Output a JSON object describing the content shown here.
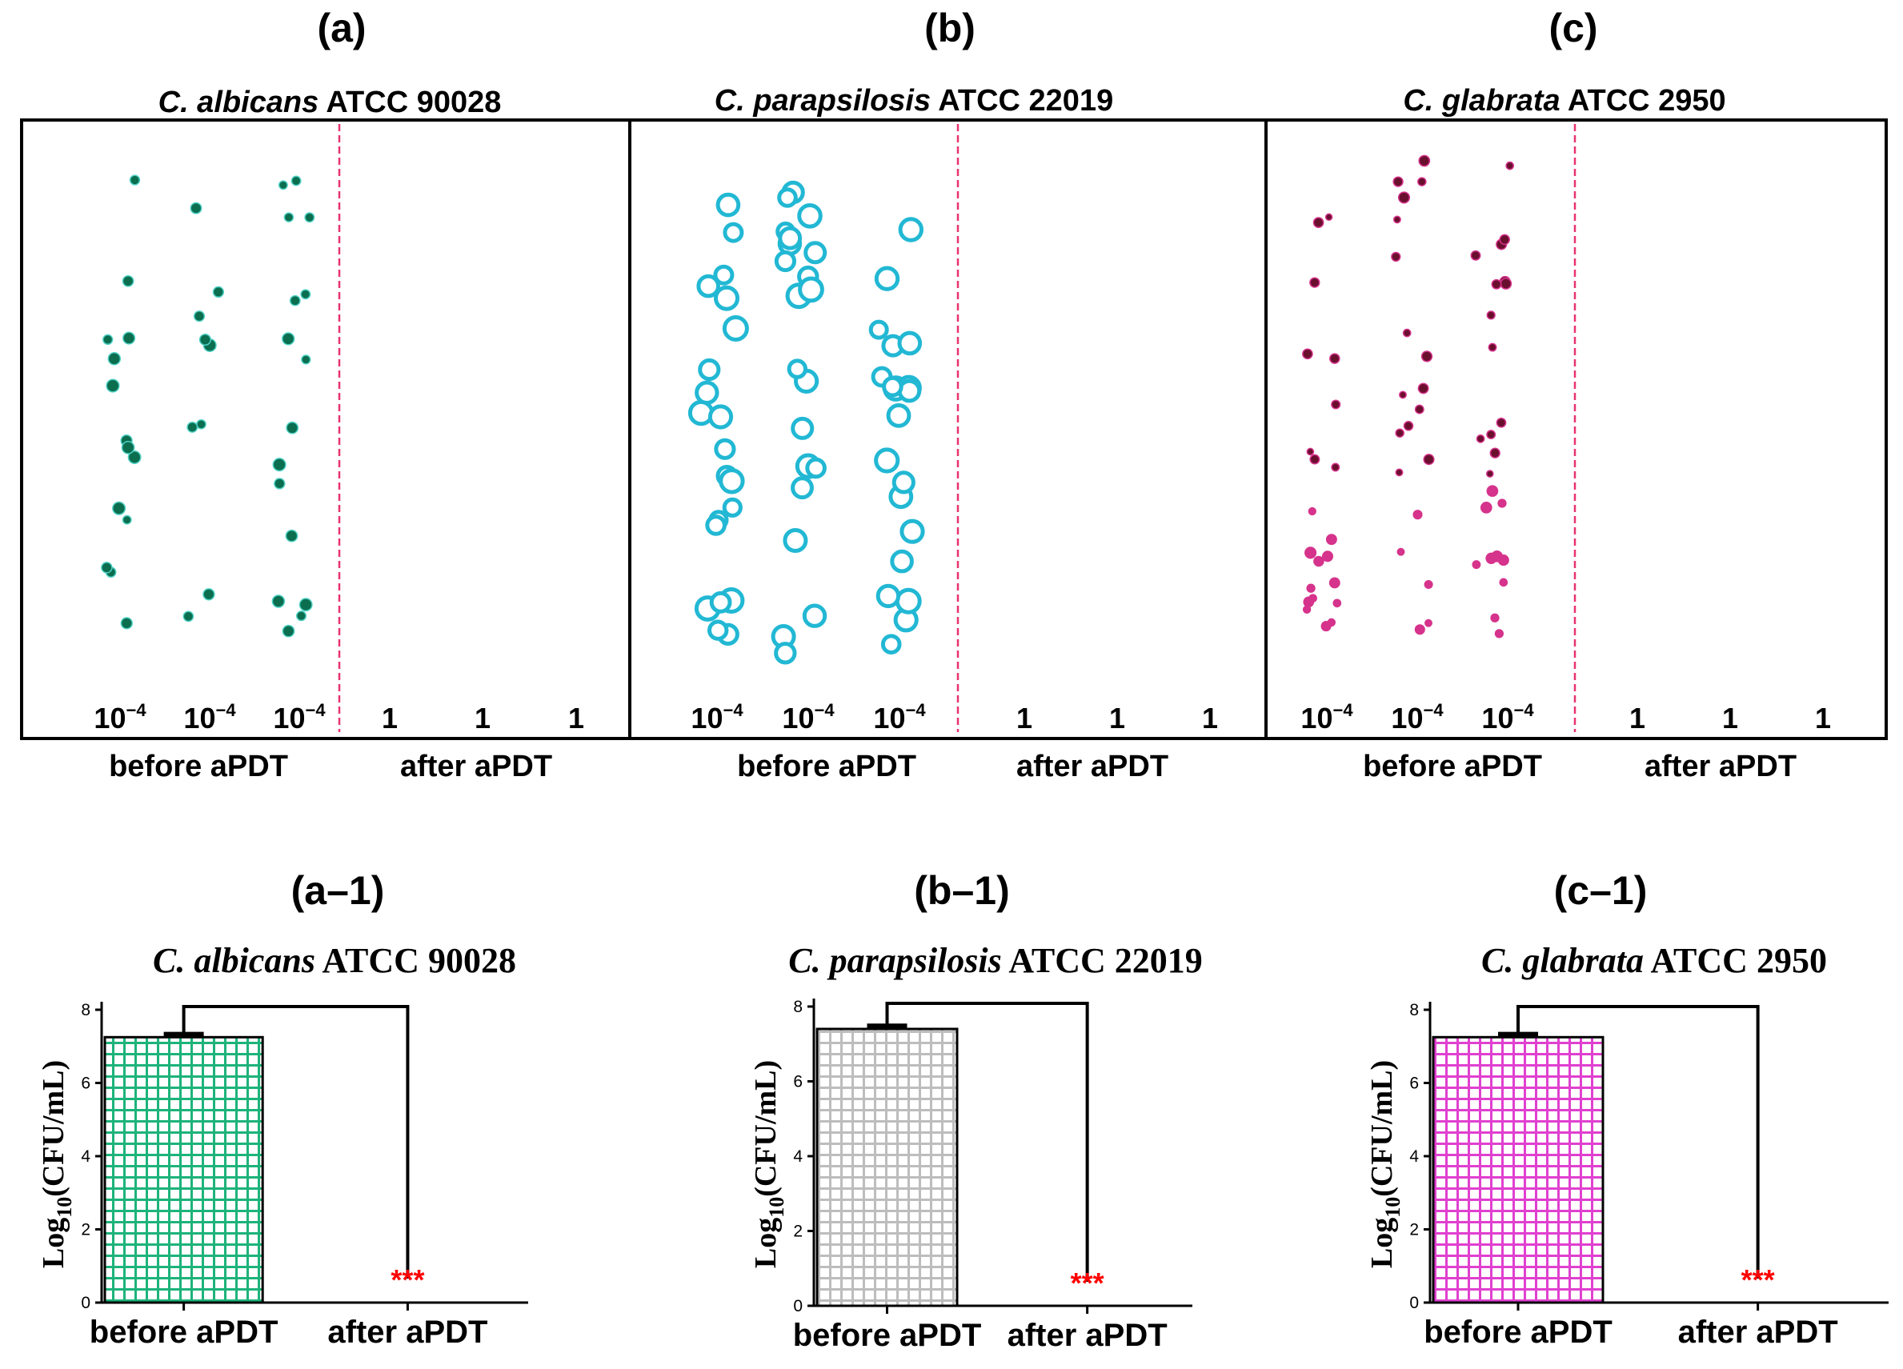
{
  "panels_top": [
    {
      "label": "(a)",
      "species_italic": "C. albicans",
      "strain": "ATCC 90028",
      "dilution_labels": [
        "10",
        "10",
        "10"
      ],
      "dilution_exponent": "−4",
      "after_labels": [
        "1",
        "1",
        "1"
      ],
      "before_label": "before aPDT",
      "after_label": "after aPDT",
      "colony_color": "#0b6e4f",
      "colony_edge": "#4fd1c5"
    },
    {
      "label": "(b)",
      "species_italic": "C. parapsilosis",
      "strain": "ATCC 22019",
      "dilution_labels": [
        "10",
        "10",
        "10"
      ],
      "dilution_exponent": "−4",
      "after_labels": [
        "1",
        "1",
        "1"
      ],
      "before_label": "before aPDT",
      "after_label": "after aPDT",
      "colony_color": "#ffffff",
      "colony_edge": "#22b8d4"
    },
    {
      "label": "(c)",
      "species_italic": "C. glabrata",
      "strain": "ATCC 2950",
      "dilution_labels": [
        "10",
        "10",
        "10"
      ],
      "dilution_exponent": "−4",
      "after_labels": [
        "1",
        "1",
        "1"
      ],
      "before_label": "before aPDT",
      "after_label": "after aPDT",
      "colony_color": "#6b0f2e",
      "colony_edge": "#d6338c"
    }
  ],
  "chart_data": [
    {
      "type": "bar",
      "label": "(a–1)",
      "title_italic": "C. albicans",
      "title_strain": "ATCC 90028",
      "categories": [
        "before aPDT",
        "after aPDT"
      ],
      "values": [
        7.25,
        0
      ],
      "error": [
        0.08,
        0
      ],
      "ylabel": "Log",
      "ylabel_sub": "10",
      "ylabel_tail": "(CFU/mL)",
      "ylim": [
        0,
        8
      ],
      "yticks": [
        "0",
        "2",
        "4",
        "6",
        "8"
      ],
      "significance": "***",
      "fill_color": "#1db37a",
      "significance_color": "#ff0000"
    },
    {
      "type": "bar",
      "label": "(b–1)",
      "title_italic": "C. parapsilosis",
      "title_strain": "ATCC 22019",
      "categories": [
        "before aPDT",
        "after aPDT"
      ],
      "values": [
        7.4,
        0
      ],
      "error": [
        0.08,
        0
      ],
      "ylabel": "Log",
      "ylabel_sub": "10",
      "ylabel_tail": "(CFU/mL)",
      "ylim": [
        0,
        8
      ],
      "yticks": [
        "0",
        "2",
        "4",
        "6",
        "8"
      ],
      "significance": "***",
      "fill_color": "#bdbdbd",
      "significance_color": "#ff0000"
    },
    {
      "type": "bar",
      "label": "(c–1)",
      "title_italic": "C. glabrata",
      "title_strain": "ATCC 2950",
      "categories": [
        "before aPDT",
        "after aPDT"
      ],
      "values": [
        7.25,
        0
      ],
      "error": [
        0.08,
        0
      ],
      "ylabel": "Log",
      "ylabel_sub": "10",
      "ylabel_tail": "(CFU/mL)",
      "ylim": [
        0,
        8
      ],
      "yticks": [
        "0",
        "2",
        "4",
        "6",
        "8"
      ],
      "significance": "***",
      "fill_color": "#e040d0",
      "significance_color": "#ff0000"
    }
  ]
}
